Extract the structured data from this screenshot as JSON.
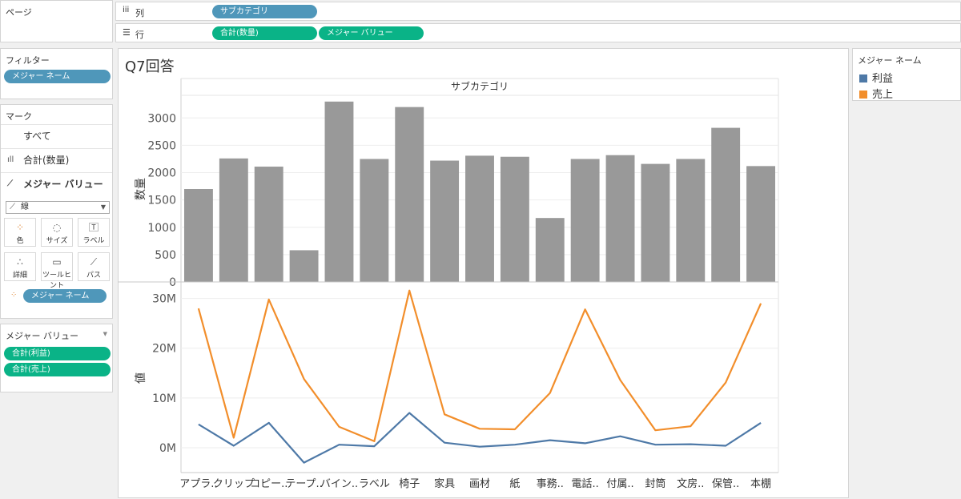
{
  "pages_panel": {
    "title": "ページ"
  },
  "columns_shelf": {
    "label": "列",
    "icon": "columns-icon",
    "pills": [
      "サブカテゴリ"
    ]
  },
  "rows_shelf": {
    "label": "行",
    "icon": "rows-icon",
    "pills": [
      "合計(数量)",
      "メジャー バリュー"
    ]
  },
  "filters_panel": {
    "title": "フィルター",
    "pills": [
      "メジャー ネーム"
    ]
  },
  "marks_panel": {
    "title": "マーク",
    "rows": [
      {
        "label": "すべて",
        "icon": ""
      },
      {
        "label": "合計(数量)",
        "icon": "bar-chart-icon"
      },
      {
        "label": "メジャー バリュー",
        "icon": "line-chart-icon"
      }
    ],
    "mark_type": "線",
    "buttons": [
      {
        "label": "色",
        "icon": "color-icon"
      },
      {
        "label": "サイズ",
        "icon": "size-icon"
      },
      {
        "label": "ラベル",
        "icon": "label-icon"
      },
      {
        "label": "詳細",
        "icon": "detail-icon"
      },
      {
        "label": "ツールヒント",
        "icon": "tooltip-icon"
      },
      {
        "label": "パス",
        "icon": "path-icon"
      }
    ],
    "color_pill": "メジャー ネーム"
  },
  "measure_values_panel": {
    "title": "メジャー バリュー",
    "pills": [
      "合計(利益)",
      "合計(売上)"
    ]
  },
  "legend": {
    "title": "メジャー ネーム",
    "items": [
      {
        "label": "利益",
        "color": "#4e79a7"
      },
      {
        "label": "売上",
        "color": "#f28e2b"
      }
    ]
  },
  "sheet_title": "Q7回答",
  "chart_data": [
    {
      "type": "bar",
      "title": "サブカテゴリ",
      "ylabel": "数量",
      "categories": [
        "アプラ..",
        "クリップ",
        "コピー..",
        "テープ..",
        "バイン..",
        "ラベル",
        "椅子",
        "家具",
        "画材",
        "紙",
        "事務..",
        "電話..",
        "付属..",
        "封筒",
        "文房..",
        "保管..",
        "本棚"
      ],
      "values": [
        1700,
        2260,
        2110,
        580,
        3300,
        2250,
        3200,
        2220,
        2310,
        2290,
        1170,
        2250,
        2320,
        2160,
        2250,
        2820,
        2120
      ],
      "ylim": [
        0,
        3400
      ],
      "yticks": [
        "0",
        "500",
        "1000",
        "1500",
        "2000",
        "2500",
        "3000"
      ],
      "color": "#999999",
      "grid": true
    },
    {
      "type": "line",
      "ylabel": "値",
      "categories": [
        "アプラ..",
        "クリップ",
        "コピー..",
        "テープ..",
        "バイン..",
        "ラベル",
        "椅子",
        "家具",
        "画材",
        "紙",
        "事務..",
        "電話..",
        "付属..",
        "封筒",
        "文房..",
        "保管..",
        "本棚"
      ],
      "series": [
        {
          "name": "売上",
          "color": "#f28e2b",
          "values": [
            28000000,
            2000000,
            29800000,
            13800000,
            4200000,
            1300000,
            31600000,
            6700000,
            3800000,
            3700000,
            11000000,
            27800000,
            13600000,
            3500000,
            4300000,
            13100000,
            29000000
          ]
        },
        {
          "name": "利益",
          "color": "#4e79a7",
          "values": [
            4700000,
            400000,
            5000000,
            -3000000,
            600000,
            300000,
            7000000,
            1000000,
            200000,
            600000,
            1500000,
            900000,
            2300000,
            600000,
            700000,
            400000,
            5000000
          ]
        }
      ],
      "ylim": [
        -5000000,
        33000000
      ],
      "yticks": [
        "0M",
        "10M",
        "20M",
        "30M"
      ],
      "grid": true
    }
  ]
}
